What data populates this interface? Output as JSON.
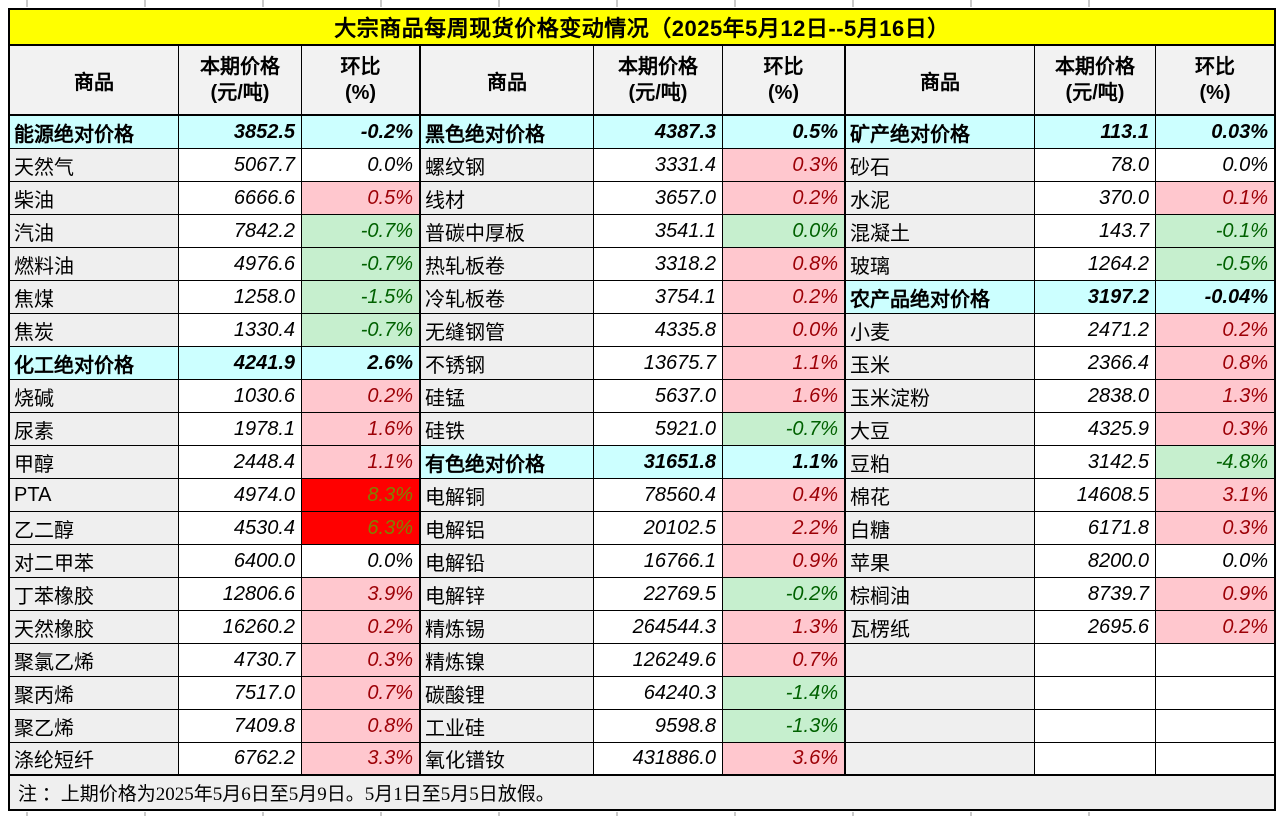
{
  "title": "大宗商品每周现货价格变动情况（2025年5月12日--5月16日）",
  "note": "注 ：上期价格为2025年5月6日至5月9日。5月1日至5月5日放假。",
  "column_headers": {
    "commodity": "商品",
    "price_line1": "本期价格",
    "price_line2": "(元/吨)",
    "pct_line1": "环比",
    "pct_line2": "(%)"
  },
  "colors": {
    "title_bg": "#FFFF00",
    "category_bg": "#CCFFFF",
    "name_bg": "#EFEFEF",
    "header_bg": "#F2F2F2",
    "note_bg": "#EFEFEF",
    "up_bg": "#FFC7CE",
    "up_text": "#9C0006",
    "down_bg": "#C6EFCE",
    "down_text": "#006100",
    "hot_bg": "#FF0000",
    "hot_text": "#808000",
    "border": "#000000"
  },
  "groups": [
    {
      "rows": [
        {
          "name": "能源绝对价格",
          "price": "3852.5",
          "pct": "-0.2%",
          "kind": "category",
          "trend": "none"
        },
        {
          "name": "天然气",
          "price": "5067.7",
          "pct": "0.0%",
          "kind": "item",
          "trend": "flat"
        },
        {
          "name": "柴油",
          "price": "6666.6",
          "pct": "0.5%",
          "kind": "item",
          "trend": "up"
        },
        {
          "name": "汽油",
          "price": "7842.2",
          "pct": "-0.7%",
          "kind": "item",
          "trend": "down"
        },
        {
          "name": "燃料油",
          "price": "4976.6",
          "pct": "-0.7%",
          "kind": "item",
          "trend": "down"
        },
        {
          "name": "焦煤",
          "price": "1258.0",
          "pct": "-1.5%",
          "kind": "item",
          "trend": "down"
        },
        {
          "name": "焦炭",
          "price": "1330.4",
          "pct": "-0.7%",
          "kind": "item",
          "trend": "down"
        },
        {
          "name": "化工绝对价格",
          "price": "4241.9",
          "pct": "2.6%",
          "kind": "category",
          "trend": "none"
        },
        {
          "name": "烧碱",
          "price": "1030.6",
          "pct": "0.2%",
          "kind": "item",
          "trend": "up"
        },
        {
          "name": "尿素",
          "price": "1978.1",
          "pct": "1.6%",
          "kind": "item",
          "trend": "up"
        },
        {
          "name": "甲醇",
          "price": "2448.4",
          "pct": "1.1%",
          "kind": "item",
          "trend": "up"
        },
        {
          "name": "PTA",
          "price": "4974.0",
          "pct": "8.3%",
          "kind": "item",
          "trend": "hot"
        },
        {
          "name": "乙二醇",
          "price": "4530.4",
          "pct": "6.3%",
          "kind": "item",
          "trend": "hot"
        },
        {
          "name": "对二甲苯",
          "price": "6400.0",
          "pct": "0.0%",
          "kind": "item",
          "trend": "flat"
        },
        {
          "name": "丁苯橡胶",
          "price": "12806.6",
          "pct": "3.9%",
          "kind": "item",
          "trend": "up"
        },
        {
          "name": "天然橡胶",
          "price": "16260.2",
          "pct": "0.2%",
          "kind": "item",
          "trend": "up"
        },
        {
          "name": "聚氯乙烯",
          "price": "4730.7",
          "pct": "0.3%",
          "kind": "item",
          "trend": "up"
        },
        {
          "name": "聚丙烯",
          "price": "7517.0",
          "pct": "0.7%",
          "kind": "item",
          "trend": "up"
        },
        {
          "name": "聚乙烯",
          "price": "7409.8",
          "pct": "0.8%",
          "kind": "item",
          "trend": "up"
        },
        {
          "name": "涤纶短纤",
          "price": "6762.2",
          "pct": "3.3%",
          "kind": "item",
          "trend": "up"
        }
      ]
    },
    {
      "rows": [
        {
          "name": "黑色绝对价格",
          "price": "4387.3",
          "pct": "0.5%",
          "kind": "category",
          "trend": "none"
        },
        {
          "name": "螺纹钢",
          "price": "3331.4",
          "pct": "0.3%",
          "kind": "item",
          "trend": "up"
        },
        {
          "name": "线材",
          "price": "3657.0",
          "pct": "0.2%",
          "kind": "item",
          "trend": "up"
        },
        {
          "name": "普碳中厚板",
          "price": "3541.1",
          "pct": "0.0%",
          "kind": "item",
          "trend": "down"
        },
        {
          "name": "热轧板卷",
          "price": "3318.2",
          "pct": "0.8%",
          "kind": "item",
          "trend": "up"
        },
        {
          "name": "冷轧板卷",
          "price": "3754.1",
          "pct": "0.2%",
          "kind": "item",
          "trend": "up"
        },
        {
          "name": "无缝钢管",
          "price": "4335.8",
          "pct": "0.0%",
          "kind": "item",
          "trend": "up"
        },
        {
          "name": "不锈钢",
          "price": "13675.7",
          "pct": "1.1%",
          "kind": "item",
          "trend": "up"
        },
        {
          "name": "硅锰",
          "price": "5637.0",
          "pct": "1.6%",
          "kind": "item",
          "trend": "up"
        },
        {
          "name": "硅铁",
          "price": "5921.0",
          "pct": "-0.7%",
          "kind": "item",
          "trend": "down"
        },
        {
          "name": "有色绝对价格",
          "price": "31651.8",
          "pct": "1.1%",
          "kind": "category",
          "trend": "none"
        },
        {
          "name": "电解铜",
          "price": "78560.4",
          "pct": "0.4%",
          "kind": "item",
          "trend": "up"
        },
        {
          "name": "电解铝",
          "price": "20102.5",
          "pct": "2.2%",
          "kind": "item",
          "trend": "up"
        },
        {
          "name": "电解铅",
          "price": "16766.1",
          "pct": "0.9%",
          "kind": "item",
          "trend": "up"
        },
        {
          "name": "电解锌",
          "price": "22769.5",
          "pct": "-0.2%",
          "kind": "item",
          "trend": "down"
        },
        {
          "name": "精炼锡",
          "price": "264544.3",
          "pct": "1.3%",
          "kind": "item",
          "trend": "up"
        },
        {
          "name": "精炼镍",
          "price": "126249.6",
          "pct": "0.7%",
          "kind": "item",
          "trend": "up"
        },
        {
          "name": "碳酸锂",
          "price": "64240.3",
          "pct": "-1.4%",
          "kind": "item",
          "trend": "down"
        },
        {
          "name": "工业硅",
          "price": "9598.8",
          "pct": "-1.3%",
          "kind": "item",
          "trend": "down"
        },
        {
          "name": "氧化镨钕",
          "price": "431886.0",
          "pct": "3.6%",
          "kind": "item",
          "trend": "up"
        }
      ]
    },
    {
      "rows": [
        {
          "name": "矿产绝对价格",
          "price": "113.1",
          "pct": "0.03%",
          "kind": "category",
          "trend": "none"
        },
        {
          "name": "砂石",
          "price": "78.0",
          "pct": "0.0%",
          "kind": "item",
          "trend": "flat"
        },
        {
          "name": "水泥",
          "price": "370.0",
          "pct": "0.1%",
          "kind": "item",
          "trend": "up"
        },
        {
          "name": "混凝土",
          "price": "143.7",
          "pct": "-0.1%",
          "kind": "item",
          "trend": "down"
        },
        {
          "name": "玻璃",
          "price": "1264.2",
          "pct": "-0.5%",
          "kind": "item",
          "trend": "down"
        },
        {
          "name": "农产品绝对价格",
          "price": "3197.2",
          "pct": "-0.04%",
          "kind": "category",
          "trend": "none"
        },
        {
          "name": "小麦",
          "price": "2471.2",
          "pct": "0.2%",
          "kind": "item",
          "trend": "up"
        },
        {
          "name": "玉米",
          "price": "2366.4",
          "pct": "0.8%",
          "kind": "item",
          "trend": "up"
        },
        {
          "name": "玉米淀粉",
          "price": "2838.0",
          "pct": "1.3%",
          "kind": "item",
          "trend": "up"
        },
        {
          "name": "大豆",
          "price": "4325.9",
          "pct": "0.3%",
          "kind": "item",
          "trend": "up"
        },
        {
          "name": "豆粕",
          "price": "3142.5",
          "pct": "-4.8%",
          "kind": "item",
          "trend": "down"
        },
        {
          "name": "棉花",
          "price": "14608.5",
          "pct": "3.1%",
          "kind": "item",
          "trend": "up"
        },
        {
          "name": "白糖",
          "price": "6171.8",
          "pct": "0.3%",
          "kind": "item",
          "trend": "up"
        },
        {
          "name": "苹果",
          "price": "8200.0",
          "pct": "0.0%",
          "kind": "item",
          "trend": "flat"
        },
        {
          "name": "棕榈油",
          "price": "8739.7",
          "pct": "0.9%",
          "kind": "item",
          "trend": "up"
        },
        {
          "name": "瓦楞纸",
          "price": "2695.6",
          "pct": "0.2%",
          "kind": "item",
          "trend": "up"
        },
        {
          "name": "",
          "price": "",
          "pct": "",
          "kind": "empty",
          "trend": "none"
        },
        {
          "name": "",
          "price": "",
          "pct": "",
          "kind": "empty",
          "trend": "none"
        },
        {
          "name": "",
          "price": "",
          "pct": "",
          "kind": "empty",
          "trend": "none"
        },
        {
          "name": "",
          "price": "",
          "pct": "",
          "kind": "empty",
          "trend": "none"
        }
      ]
    }
  ]
}
